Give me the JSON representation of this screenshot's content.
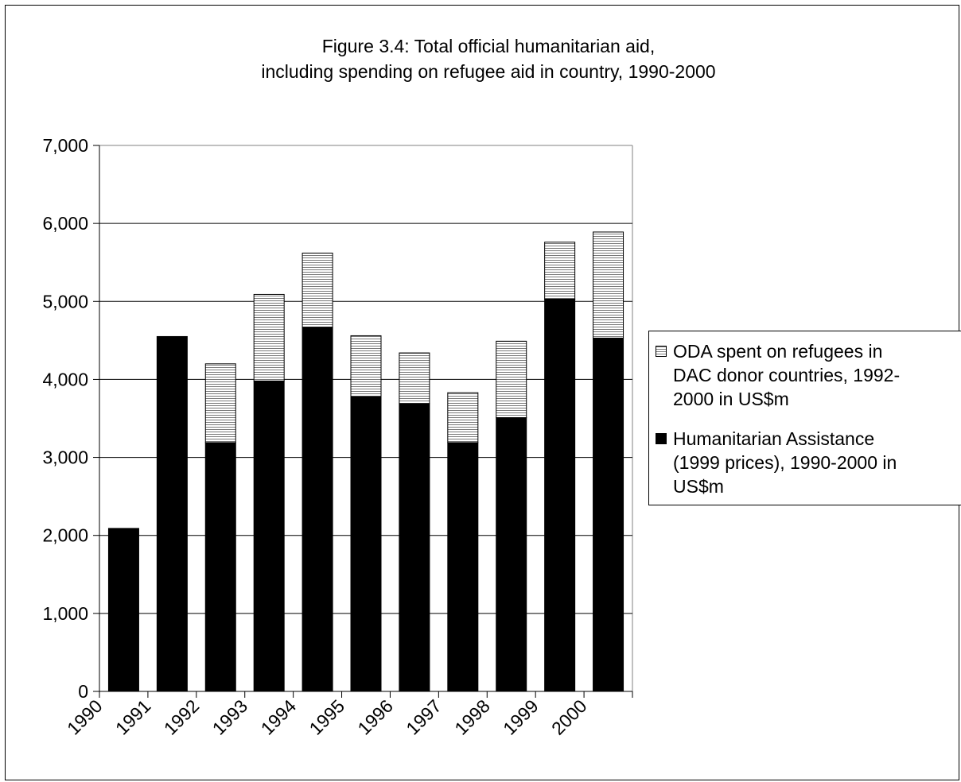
{
  "chart_data": {
    "type": "bar",
    "stacked": true,
    "title": "Figure 3.4: Total official humanitarian aid,\nincluding spending on refugee aid in country, 1990-2000",
    "title_lines": [
      "Figure 3.4: Total official humanitarian aid,",
      "including spending on refugee aid in country, 1990-2000"
    ],
    "categories": [
      "1990",
      "1991",
      "1992",
      "1993",
      "1994",
      "1995",
      "1996",
      "1997",
      "1998",
      "1999",
      "2000"
    ],
    "series": [
      {
        "name": "Humanitarian Assistance (1999 prices), 1990-2000 in US$m",
        "color": "#000000",
        "pattern": "solid",
        "values": [
          2090,
          4550,
          3190,
          3980,
          4670,
          3780,
          3690,
          3190,
          3510,
          5030,
          4530
        ]
      },
      {
        "name": "ODA spent on refugees in DAC donor countries, 1992-2000 in US$m",
        "color": "#808080",
        "pattern": "horizontal-lines",
        "values": [
          0,
          0,
          1010,
          1110,
          950,
          780,
          650,
          640,
          980,
          730,
          1360
        ]
      }
    ],
    "xlabel": "",
    "ylabel": "",
    "ylim": [
      0,
      7000
    ],
    "yticks": [
      0,
      1000,
      2000,
      3000,
      4000,
      5000,
      6000,
      7000
    ],
    "ytick_labels": [
      "0",
      "1,000",
      "2,000",
      "3,000",
      "4,000",
      "5,000",
      "6,000",
      "7,000"
    ],
    "grid": "horizontal",
    "legend_position": "right",
    "legend": [
      {
        "label": "ODA spent on refugees in\nDAC donor countries, 1992-\n2000 in US$m",
        "pattern": "horizontal-lines"
      },
      {
        "label": "Humanitarian Assistance\n(1999 prices), 1990-2000 in\nUS$m",
        "pattern": "solid"
      }
    ]
  }
}
